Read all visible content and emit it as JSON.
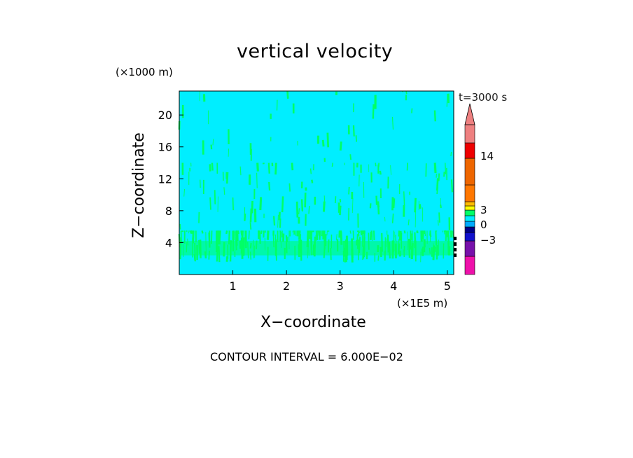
{
  "chart_data": {
    "type": "heatmap",
    "title": "vertical velocity",
    "xlabel": "X−coordinate",
    "ylabel": "Z−coordinate",
    "x_unit": "(×1E5 m)",
    "y_unit": "(×1000 m)",
    "x_ticks": [
      1,
      2,
      3,
      4,
      5
    ],
    "y_ticks": [
      4,
      8,
      12,
      16,
      20
    ],
    "xlim": [
      0,
      5.12
    ],
    "ylim": [
      0,
      23
    ],
    "time_label": "t=3000 s",
    "footer": "CONTOUR INTERVAL = 6.000E−02",
    "background_level_color": "#00eeff",
    "perturbation_color": "#00ff66",
    "perturbation_bands": [
      {
        "z_min": 1.5,
        "z_max": 5.5,
        "density": "high"
      },
      {
        "z_min": 5.5,
        "z_max": 14,
        "density": "medium"
      },
      {
        "z_min": 14,
        "z_max": 23,
        "density": "low"
      }
    ],
    "colorbar": {
      "tick_labels": [
        "14",
        "3",
        "0",
        "−3"
      ],
      "tick_values": [
        14,
        3,
        0,
        -3
      ],
      "segments": [
        {
          "level": -6,
          "color": "#ee11aa"
        },
        {
          "level": -4.5,
          "color": "#7711aa"
        },
        {
          "level": -3.5,
          "color": "#1111cc"
        },
        {
          "level": -2.5,
          "color": "#000088"
        },
        {
          "level": -1.5,
          "color": "#00aaff"
        },
        {
          "level": -0.5,
          "color": "#00eeff"
        },
        {
          "level": 0.5,
          "color": "#00ff66"
        },
        {
          "level": 1.5,
          "color": "#ffff00"
        },
        {
          "level": 2.5,
          "color": "#ffbb00"
        },
        {
          "level": 3.5,
          "color": "#ff7700"
        },
        {
          "level": 8,
          "color": "#ee6600"
        },
        {
          "level": 12,
          "color": "#ee0000"
        },
        {
          "level": 16,
          "color": "#ee8080"
        }
      ]
    }
  }
}
